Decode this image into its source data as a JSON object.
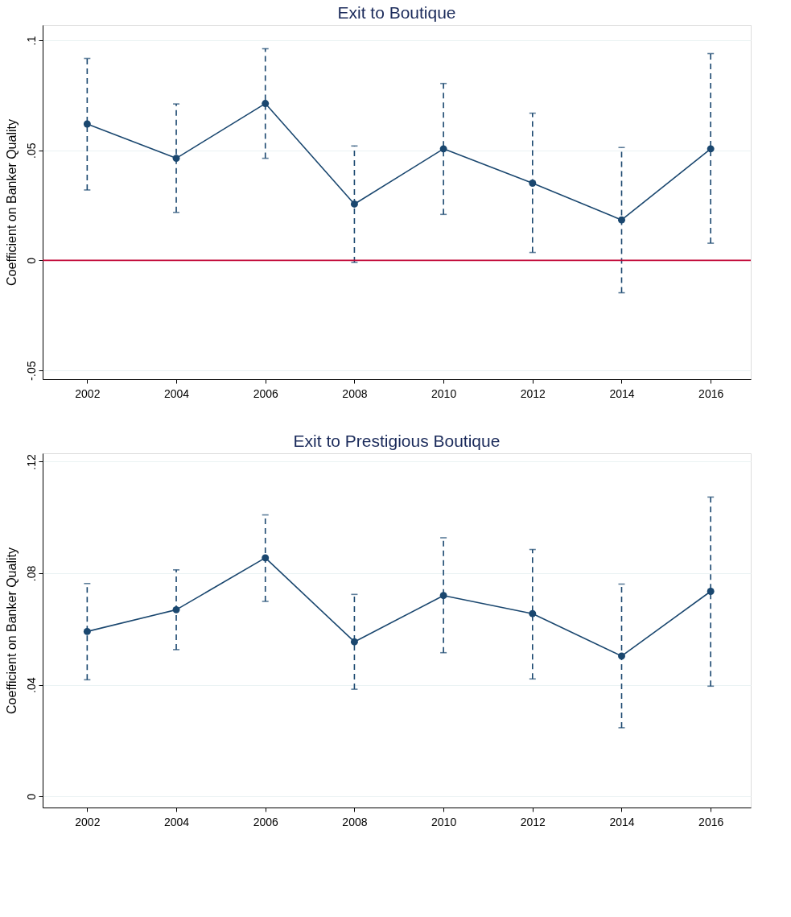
{
  "chart_data": [
    {
      "type": "line",
      "title": "Exit to Boutique",
      "ylabel": "Coefficient on Banker Quality",
      "x": [
        2002,
        2004,
        2006,
        2008,
        2010,
        2012,
        2014,
        2016
      ],
      "xlim": [
        2001,
        2016.9
      ],
      "xticks": [
        2002,
        2004,
        2006,
        2008,
        2010,
        2012,
        2014,
        2016
      ],
      "ylim": [
        -0.054,
        0.107
      ],
      "yticks": [
        {
          "value": -0.05,
          "label": "-.05"
        },
        0,
        {
          "value": 0.05,
          "label": ".05"
        },
        {
          "value": 0.1,
          "label": ".1"
        }
      ],
      "grid": "y",
      "marker": "circle",
      "line_style": "solid",
      "series": [
        {
          "color": "#1a476f",
          "values": [
            0.062,
            0.0464,
            0.0713,
            0.0256,
            0.0507,
            0.0351,
            0.0184,
            0.0507
          ],
          "errors": [
            [
              0.032,
              0.0918
            ],
            [
              0.0218,
              0.0711
            ],
            [
              0.0464,
              0.0962
            ],
            [
              -0.0009,
              0.052
            ],
            [
              0.0209,
              0.0804
            ],
            [
              0.0036,
              0.0669
            ],
            [
              -0.0147,
              0.0513
            ],
            [
              0.0078,
              0.094
            ]
          ]
        }
      ],
      "ref_lines": [
        {
          "axis": "y",
          "value": 0,
          "color": "#c10534"
        }
      ]
    },
    {
      "type": "line",
      "title": "Exit to Prestigious Boutique",
      "ylabel": "Coefficient on Banker Quality",
      "x": [
        2002,
        2004,
        2006,
        2008,
        2010,
        2012,
        2014,
        2016
      ],
      "xlim": [
        2001,
        2016.9
      ],
      "xticks": [
        2002,
        2004,
        2006,
        2008,
        2010,
        2012,
        2014,
        2016
      ],
      "ylim": [
        -0.004,
        0.123
      ],
      "yticks": [
        0,
        {
          "value": 0.04,
          "label": ".04"
        },
        {
          "value": 0.08,
          "label": ".08"
        },
        {
          "value": 0.12,
          "label": ".12"
        }
      ],
      "grid": "y",
      "marker": "circle",
      "line_style": "solid",
      "series": [
        {
          "color": "#1a476f",
          "values": [
            0.0591,
            0.0669,
            0.0855,
            0.0554,
            0.072,
            0.0655,
            0.0503,
            0.0735
          ],
          "errors": [
            [
              0.0418,
              0.0763
            ],
            [
              0.0526,
              0.0812
            ],
            [
              0.0699,
              0.1009
            ],
            [
              0.0384,
              0.0724
            ],
            [
              0.0515,
              0.0927
            ],
            [
              0.0421,
              0.0885
            ],
            [
              0.0246,
              0.0761
            ],
            [
              0.0395,
              0.1073
            ]
          ]
        }
      ]
    }
  ]
}
